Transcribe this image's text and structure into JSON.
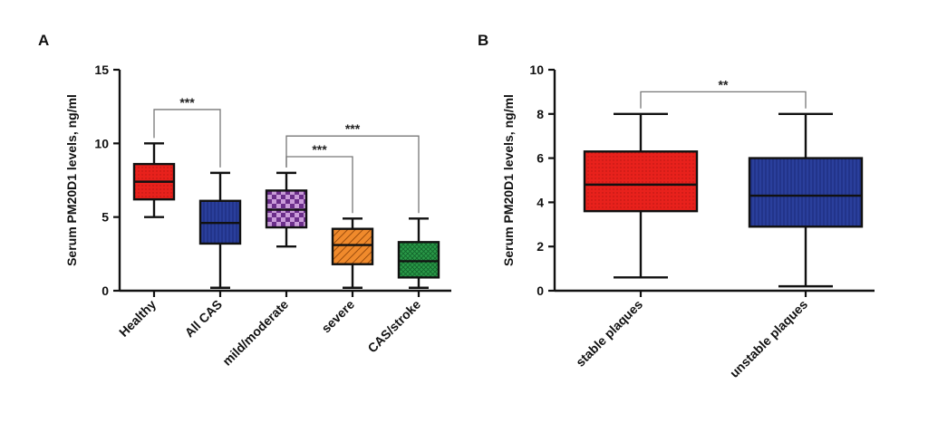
{
  "panels": [
    {
      "label": "A",
      "colors": {
        "fill": [
          "#e8211c",
          "#2a3f9c",
          "#7c3d99",
          "#f08a2c",
          "#2a9a48"
        ]
      }
    },
    {
      "label": "B",
      "colors": {
        "fill": [
          "#e8211c",
          "#2a3f9c"
        ]
      }
    }
  ],
  "chart_data": [
    {
      "type": "box",
      "panel": "A",
      "ylabel": "Serum PM20D1 levels, ng/ml",
      "ylim": [
        0,
        15
      ],
      "yticks": [
        0,
        5,
        10,
        15
      ],
      "categories": [
        "Healthy",
        "All CAS",
        "mild/moderate",
        "severe",
        "CAS/stroke"
      ],
      "boxes": [
        {
          "category": "Healthy",
          "min": 5.0,
          "q1": 6.2,
          "median": 7.4,
          "q3": 8.6,
          "max": 10.0,
          "pattern": "dots"
        },
        {
          "category": "All CAS",
          "min": 0.2,
          "q1": 3.2,
          "median": 4.6,
          "q3": 6.1,
          "max": 8.0,
          "pattern": "vertical-lines"
        },
        {
          "category": "mild/moderate",
          "min": 3.0,
          "q1": 4.3,
          "median": 5.5,
          "q3": 6.8,
          "max": 8.0,
          "pattern": "checker"
        },
        {
          "category": "severe",
          "min": 0.2,
          "q1": 1.8,
          "median": 3.1,
          "q3": 4.2,
          "max": 4.9,
          "pattern": "diagonal-lines"
        },
        {
          "category": "CAS/stroke",
          "min": 0.2,
          "q1": 0.9,
          "median": 2.0,
          "q3": 3.3,
          "max": 4.9,
          "pattern": "crosshatch"
        }
      ],
      "significance": [
        {
          "from": "Healthy",
          "to": "All CAS",
          "label": "***",
          "y": 12.3
        },
        {
          "from": "mild/moderate",
          "to": "CAS/stroke",
          "label": "***",
          "y": 10.5
        },
        {
          "from": "mild/moderate",
          "to": "severe",
          "label": "***",
          "y": 9.1
        }
      ],
      "grid": false
    },
    {
      "type": "box",
      "panel": "B",
      "ylabel": "Serum PM20D1 levels, ng/ml",
      "ylim": [
        0,
        10
      ],
      "yticks": [
        0,
        2,
        4,
        6,
        8,
        10
      ],
      "categories": [
        "stable plaques",
        "unstable plaques"
      ],
      "boxes": [
        {
          "category": "stable plaques",
          "min": 0.6,
          "q1": 3.6,
          "median": 4.8,
          "q3": 6.3,
          "max": 8.0,
          "pattern": "dots"
        },
        {
          "category": "unstable plaques",
          "min": 0.2,
          "q1": 2.9,
          "median": 4.3,
          "q3": 6.0,
          "max": 8.0,
          "pattern": "vertical-lines"
        }
      ],
      "significance": [
        {
          "from": "stable plaques",
          "to": "unstable plaques",
          "label": "**",
          "y": 9.0
        }
      ],
      "grid": false
    }
  ]
}
